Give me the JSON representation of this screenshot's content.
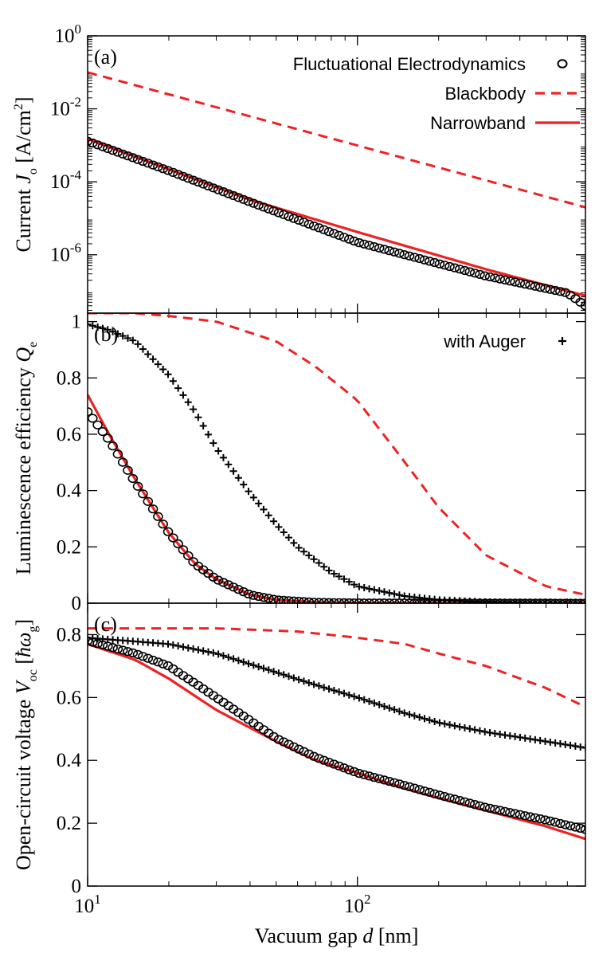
{
  "chart_data": {
    "type": "line",
    "xlabel_main": "Vacuum gap ",
    "xlabel_var": "d",
    "xlabel_unit": " [nm]",
    "xscale": "log",
    "xlim": [
      10,
      700
    ],
    "xticks": [
      {
        "value": 10,
        "base": "10",
        "exp": "1"
      },
      {
        "value": 100,
        "base": "10",
        "exp": "2"
      }
    ],
    "colors": {
      "fe": "#000000",
      "auger": "#000000",
      "blackbody": "#ee2222",
      "narrowband": "#ee2222"
    },
    "panels": [
      {
        "id": "a",
        "label": "(a)",
        "ylabel_main": "Current ",
        "ylabel_var": "J",
        "ylabel_sub": "o",
        "ylabel_unit_pre": " [A/cm",
        "ylabel_unit_sup": "2",
        "ylabel_unit_post": "]",
        "yscale": "log",
        "ylim_log10": [
          -7.6,
          0
        ],
        "yticks": [
          {
            "value_log10": 0,
            "base": "10",
            "exp": "0"
          },
          {
            "value_log10": -2,
            "base": "10",
            "exp": "-2"
          },
          {
            "value_log10": -4,
            "base": "10",
            "exp": "-4"
          },
          {
            "value_log10": -6,
            "base": "10",
            "exp": "-6"
          }
        ],
        "legend_position": "top-right",
        "legend": [
          {
            "key": "fe",
            "label": "Fluctuational Electrodynamics",
            "marker": "circle"
          },
          {
            "key": "blackbody",
            "label": "Blackbody",
            "marker": "dashed"
          },
          {
            "key": "narrowband",
            "label": "Narrowband",
            "marker": "solid"
          }
        ],
        "series": [
          {
            "key": "blackbody",
            "style": "dashed",
            "x": [
              10,
              700
            ],
            "y": [
              0.1,
              2e-05
            ]
          },
          {
            "key": "narrowband",
            "style": "solid",
            "x": [
              10,
              20,
              40,
              100,
              300,
              700
            ],
            "y": [
              0.0015,
              0.00022,
              3.2e-05,
              4.2e-06,
              4e-07,
              7.5e-08
            ]
          },
          {
            "key": "fe",
            "style": "circle",
            "x": [
              10,
              20,
              40,
              100,
              300,
              600,
              700
            ],
            "y": [
              0.0013,
              0.0002,
              2.8e-05,
              2.2e-06,
              2.6e-07,
              9e-08,
              4e-08
            ]
          }
        ]
      },
      {
        "id": "b",
        "label": "(b)",
        "ylabel_main": "Luminescence efficiency ",
        "ylabel_var": "Q",
        "ylabel_sub": "e",
        "yscale": "linear",
        "ylim": [
          0,
          1.03
        ],
        "yticks": [
          {
            "value": 0,
            "label": "0"
          },
          {
            "value": 0.2,
            "label": "0.2"
          },
          {
            "value": 0.4,
            "label": "0.4"
          },
          {
            "value": 0.6,
            "label": "0.6"
          },
          {
            "value": 0.8,
            "label": "0.8"
          },
          {
            "value": 1,
            "label": "1"
          }
        ],
        "legend_position": "top-right",
        "legend": [
          {
            "key": "auger",
            "label": "with Auger",
            "marker": "plus"
          }
        ],
        "series": [
          {
            "key": "blackbody",
            "style": "dashed",
            "x": [
              10,
              15,
              20,
              30,
              50,
              70,
              100,
              150,
              200,
              300,
              500,
              700
            ],
            "y": [
              1.03,
              1.03,
              1.02,
              1.0,
              0.93,
              0.84,
              0.72,
              0.5,
              0.34,
              0.17,
              0.06,
              0.03
            ]
          },
          {
            "key": "narrowband",
            "style": "solid",
            "x": [
              10,
              12,
              15,
              20,
              25,
              30,
              40,
              50,
              70,
              100,
              700
            ],
            "y": [
              0.74,
              0.6,
              0.44,
              0.25,
              0.14,
              0.085,
              0.03,
              0.012,
              0.003,
              0.001,
              0
            ]
          },
          {
            "key": "fe",
            "style": "circle",
            "x": [
              10,
              12,
              15,
              20,
              25,
              30,
              40,
              50,
              70,
              100,
              700
            ],
            "y": [
              0.68,
              0.58,
              0.43,
              0.25,
              0.14,
              0.085,
              0.03,
              0.012,
              0.003,
              0.001,
              0
            ]
          },
          {
            "key": "auger",
            "style": "plus",
            "x": [
              10,
              12,
              15,
              20,
              25,
              30,
              40,
              50,
              60,
              80,
              100,
              150,
              200,
              300,
              500,
              700
            ],
            "y": [
              0.99,
              0.97,
              0.93,
              0.81,
              0.68,
              0.55,
              0.39,
              0.28,
              0.2,
              0.11,
              0.06,
              0.025,
              0.012,
              0.004,
              0.001,
              0
            ]
          }
        ]
      },
      {
        "id": "c",
        "label": "(c)",
        "ylabel_main": "Open-circuit voltage ",
        "ylabel_var": "V",
        "ylabel_sub": "oc",
        "ylabel_unit_pre": " [",
        "ylabel_unit_sym": "ħω",
        "ylabel_unit_sub": "g",
        "ylabel_unit_post": "]",
        "yscale": "linear",
        "ylim": [
          0,
          0.9
        ],
        "yticks": [
          {
            "value": 0,
            "label": "0"
          },
          {
            "value": 0.2,
            "label": "0.2"
          },
          {
            "value": 0.4,
            "label": "0.4"
          },
          {
            "value": 0.6,
            "label": "0.6"
          },
          {
            "value": 0.8,
            "label": "0.8"
          }
        ],
        "series": [
          {
            "key": "blackbody",
            "style": "dashed",
            "x": [
              10,
              30,
              60,
              100,
              150,
              200,
              300,
              500,
              700
            ],
            "y": [
              0.82,
              0.82,
              0.81,
              0.79,
              0.77,
              0.74,
              0.7,
              0.63,
              0.57
            ]
          },
          {
            "key": "auger",
            "style": "plus",
            "x": [
              10,
              20,
              30,
              50,
              70,
              100,
              150,
              200,
              300,
              500,
              700
            ],
            "y": [
              0.79,
              0.77,
              0.74,
              0.68,
              0.64,
              0.6,
              0.55,
              0.52,
              0.49,
              0.46,
              0.44
            ]
          },
          {
            "key": "narrowband",
            "style": "solid",
            "x": [
              10,
              15,
              20,
              30,
              50,
              70,
              100,
              150,
              200,
              300,
              500,
              700
            ],
            "y": [
              0.77,
              0.72,
              0.66,
              0.56,
              0.46,
              0.4,
              0.36,
              0.31,
              0.28,
              0.24,
              0.19,
              0.15
            ]
          },
          {
            "key": "fe",
            "style": "circle",
            "x": [
              10,
              15,
              20,
              30,
              50,
              70,
              100,
              150,
              200,
              300,
              500,
              700
            ],
            "y": [
              0.78,
              0.74,
              0.7,
              0.6,
              0.47,
              0.41,
              0.36,
              0.32,
              0.29,
              0.25,
              0.21,
              0.18
            ]
          }
        ]
      }
    ]
  }
}
